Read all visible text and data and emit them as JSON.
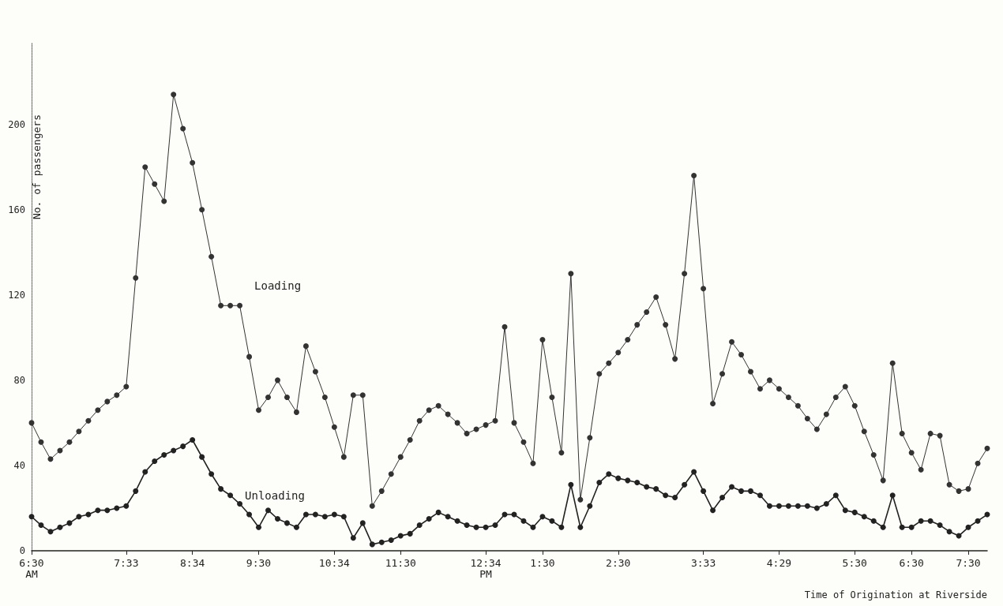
{
  "chart_data": {
    "type": "line",
    "xlabel": "Time of Origination at Riverside",
    "ylabel": "No. of passengers",
    "categories": [
      "6:30\nAM",
      null,
      null,
      null,
      null,
      null,
      null,
      null,
      null,
      null,
      "7:33",
      null,
      null,
      null,
      null,
      null,
      null,
      "8:34",
      null,
      null,
      null,
      null,
      null,
      null,
      "9:30",
      null,
      null,
      null,
      null,
      null,
      null,
      null,
      "10:34",
      null,
      null,
      null,
      null,
      null,
      null,
      "11:30",
      null,
      null,
      null,
      null,
      null,
      null,
      null,
      null,
      "12:34\nPM",
      null,
      null,
      null,
      null,
      null,
      "1:30",
      null,
      null,
      null,
      null,
      null,
      null,
      null,
      "2:30",
      null,
      null,
      null,
      null,
      null,
      null,
      null,
      null,
      "3:33",
      null,
      null,
      null,
      null,
      null,
      null,
      null,
      "4:29",
      null,
      null,
      null,
      null,
      null,
      null,
      null,
      "5:30",
      null,
      null,
      null,
      null,
      null,
      "6:30",
      null,
      null,
      null,
      null,
      null,
      "7:30",
      null,
      null
    ],
    "series": [
      {
        "name": "Loading",
        "color": "#333333",
        "values": [
          60,
          51,
          43,
          47,
          51,
          56,
          61,
          66,
          70,
          73,
          77,
          128,
          180,
          172,
          164,
          214,
          198,
          182,
          160,
          138,
          115,
          115,
          115,
          91,
          66,
          72,
          80,
          72,
          65,
          96,
          84,
          72,
          58,
          44,
          73,
          73,
          21,
          28,
          36,
          44,
          52,
          61,
          66,
          68,
          64,
          60,
          55,
          57,
          59,
          61,
          105,
          60,
          51,
          41,
          99,
          72,
          46,
          130,
          24,
          53,
          83,
          88,
          93,
          99,
          106,
          112,
          119,
          106,
          90,
          130,
          176,
          123,
          69,
          83,
          98,
          92,
          84,
          76,
          80,
          76,
          72,
          68,
          62,
          57,
          64,
          72,
          77,
          68,
          56,
          45,
          33,
          88,
          55,
          46,
          38,
          55,
          54,
          31,
          28,
          29,
          41,
          48
        ]
      },
      {
        "name": "Unloading",
        "color": "#222222",
        "values": [
          16,
          12,
          9,
          11,
          13,
          16,
          17,
          19,
          19,
          20,
          21,
          28,
          37,
          42,
          45,
          47,
          49,
          52,
          44,
          36,
          29,
          26,
          22,
          17,
          11,
          19,
          15,
          13,
          11,
          17,
          17,
          16,
          17,
          16,
          6,
          13,
          3,
          4,
          5,
          7,
          8,
          12,
          15,
          18,
          16,
          14,
          12,
          11,
          11,
          12,
          17,
          17,
          14,
          11,
          16,
          14,
          11,
          31,
          11,
          21,
          32,
          36,
          34,
          33,
          32,
          30,
          29,
          26,
          25,
          31,
          37,
          28,
          19,
          25,
          30,
          28,
          28,
          26,
          21,
          21,
          21,
          21,
          21,
          20,
          22,
          26,
          19,
          18,
          16,
          14,
          11,
          26,
          11,
          11,
          14,
          14,
          12,
          9,
          7,
          11,
          14,
          17
        ]
      }
    ],
    "ylim": [
      0,
      238
    ],
    "yticks": [
      0,
      40,
      80,
      120,
      160,
      200
    ],
    "grid": false,
    "legend": false,
    "marker": "circle",
    "line_style": "solid"
  }
}
